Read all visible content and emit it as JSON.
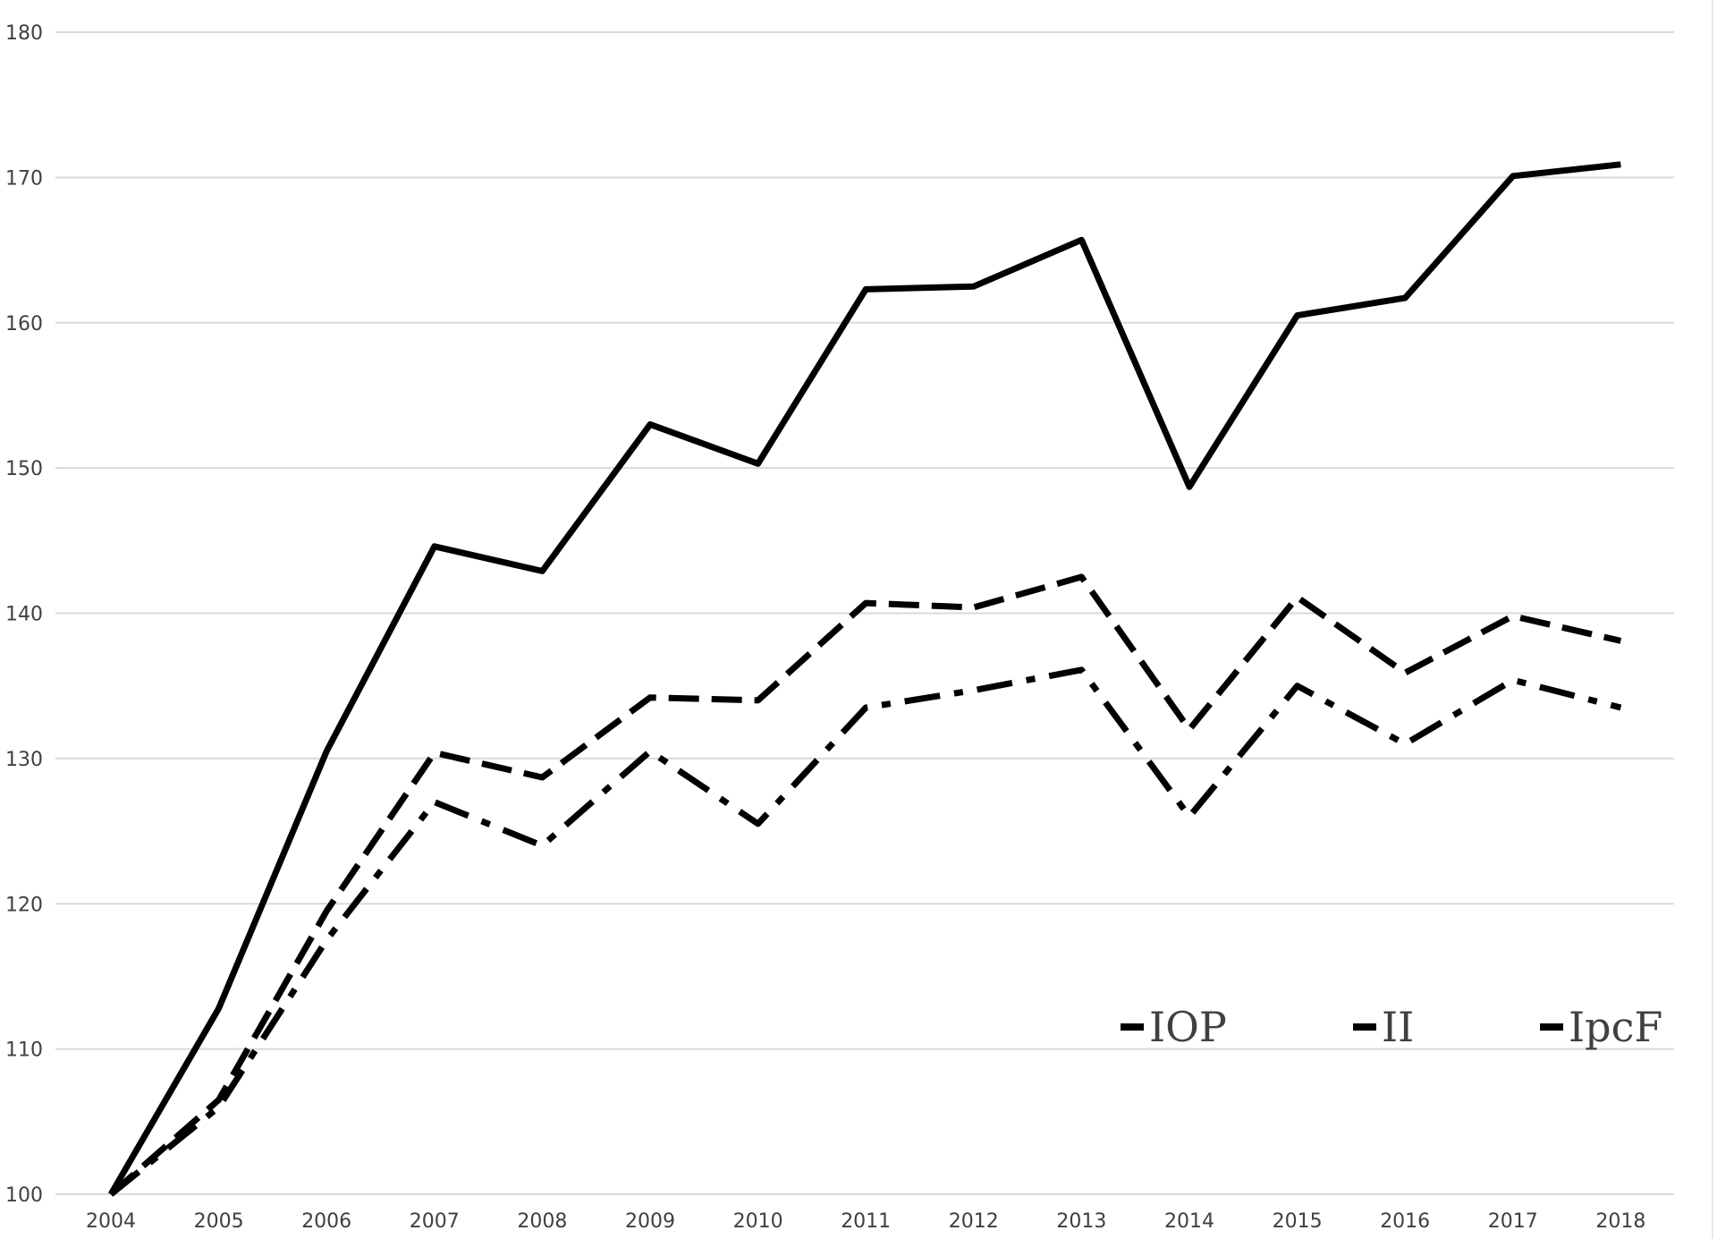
{
  "chart_data": {
    "type": "line",
    "title": "",
    "xlabel": "",
    "ylabel": "",
    "x": [
      "2004",
      "2005",
      "2006",
      "2007",
      "2008",
      "2009",
      "2010",
      "2011",
      "2012",
      "2013",
      "2014",
      "2015",
      "2016",
      "2017",
      "2018"
    ],
    "ylim": [
      100,
      180
    ],
    "yticks": [
      100,
      110,
      120,
      130,
      140,
      150,
      160,
      170,
      180
    ],
    "grid": true,
    "legend_position": "bottom-right",
    "series": [
      {
        "name": "IOP",
        "style": "dash-dot",
        "values": [
          100,
          106,
          117.5,
          127,
          124,
          130.5,
          125.5,
          133.5,
          134.7,
          136.1,
          126,
          135,
          131,
          135.4,
          133.5
        ]
      },
      {
        "name": "II",
        "style": "dashed",
        "values": [
          100,
          106.5,
          119.5,
          130.4,
          128.7,
          134.2,
          134,
          140.7,
          140.4,
          142.5,
          132,
          141.1,
          135.9,
          139.8,
          138.1
        ]
      },
      {
        "name": "IpcF",
        "style": "solid",
        "values": [
          100,
          112.8,
          130.5,
          144.6,
          142.9,
          153,
          150.3,
          162.3,
          162.5,
          165.7,
          148.7,
          160.5,
          161.7,
          170.1,
          170.9
        ]
      }
    ],
    "colors": {
      "line": "#000000",
      "grid": "#d9d9d9",
      "text": "#404040"
    }
  }
}
